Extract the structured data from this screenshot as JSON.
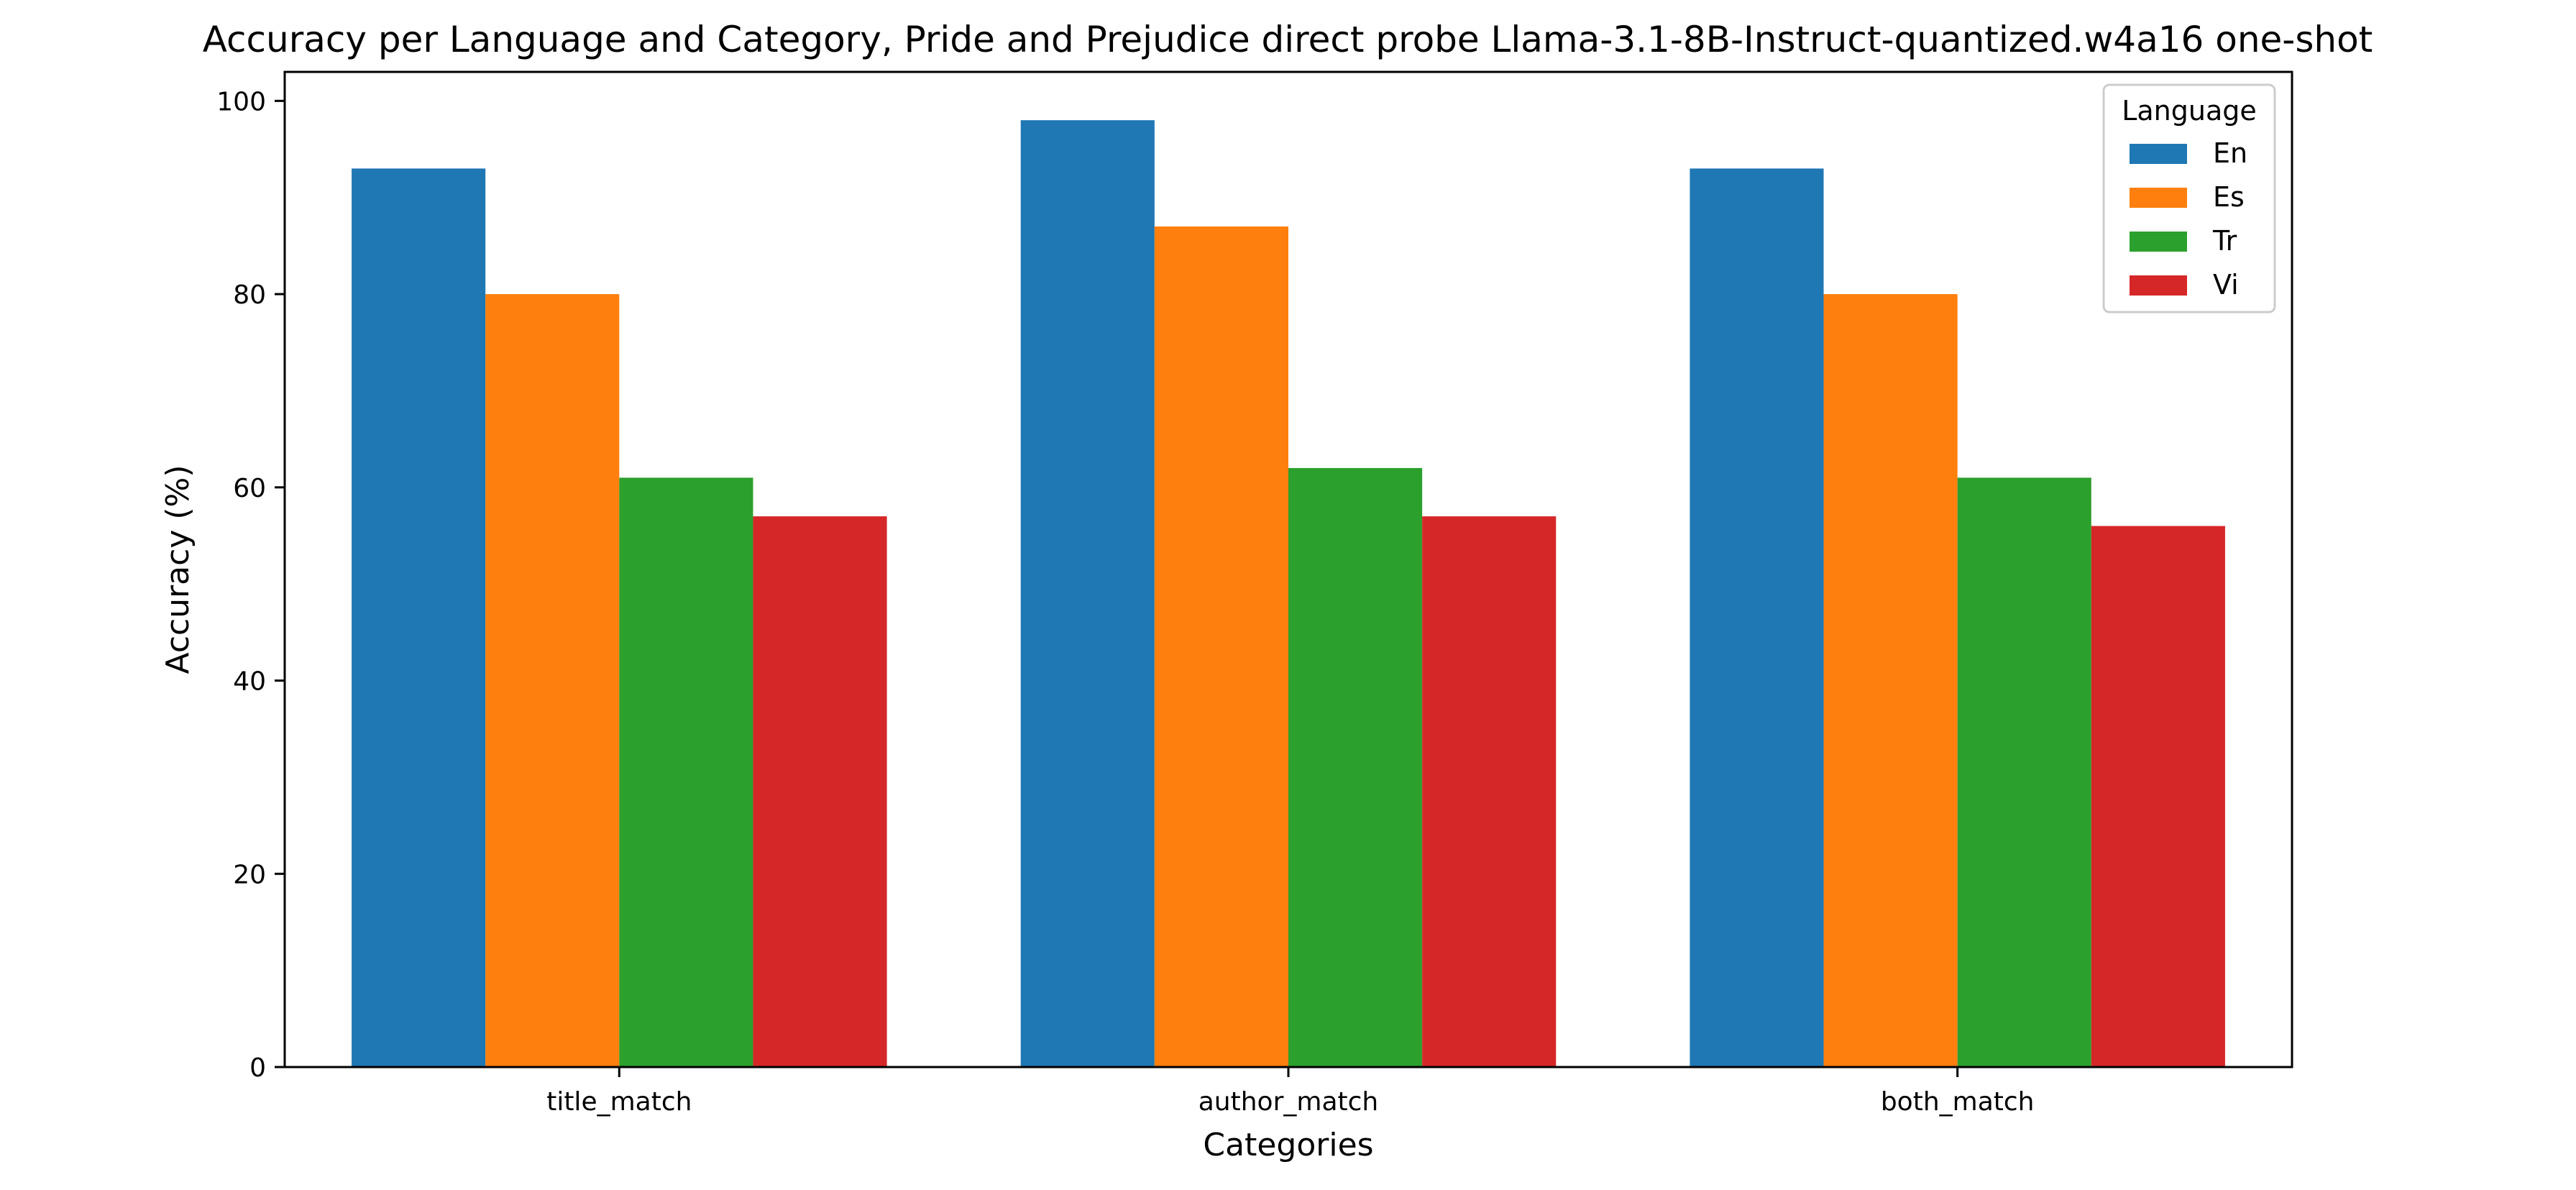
{
  "chart_data": {
    "type": "bar",
    "title": "Accuracy per Language and Category, Pride and Prejudice direct probe Llama-3.1-8B-Instruct-quantized.w4a16 one-shot",
    "xlabel": "Categories",
    "ylabel": "Accuracy (%)",
    "categories": [
      "title_match",
      "author_match",
      "both_match"
    ],
    "ylim": [
      0,
      103
    ],
    "yticks": [
      0,
      20,
      40,
      60,
      80,
      100
    ],
    "grid": false,
    "legend": {
      "title": "Language",
      "placement": "top-right"
    },
    "series": [
      {
        "name": "En",
        "color": "#1f77b4",
        "values": [
          93,
          98,
          93
        ]
      },
      {
        "name": "Es",
        "color": "#ff7f0e",
        "values": [
          80,
          87,
          80
        ]
      },
      {
        "name": "Tr",
        "color": "#2ca02c",
        "values": [
          61,
          62,
          61
        ]
      },
      {
        "name": "Vi",
        "color": "#d62728",
        "values": [
          57,
          57,
          56
        ]
      }
    ]
  }
}
